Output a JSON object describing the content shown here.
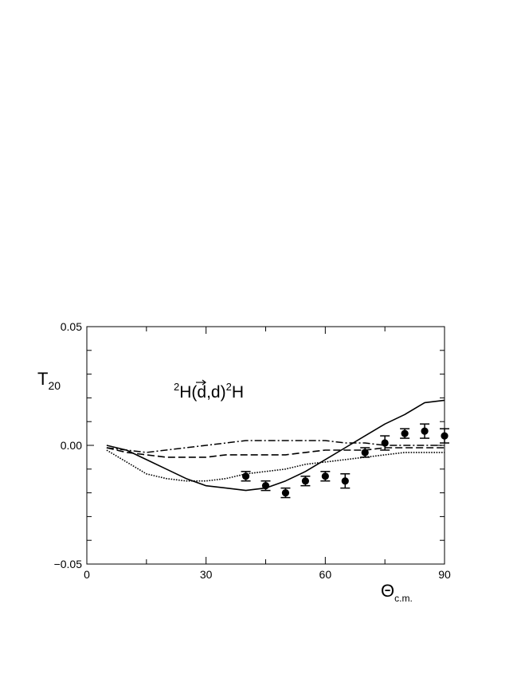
{
  "chart_data": {
    "type": "line",
    "title": "",
    "annotation": {
      "prefix_sup": "2",
      "prefix": "H(",
      "arrow_letter": "d",
      "middle": ",d)",
      "suffix_sup": "2",
      "suffix": "H"
    },
    "ylabel": {
      "main": "T",
      "sub": "20"
    },
    "xlabel": {
      "main": "Θ",
      "sub": "c.m."
    },
    "xlim": [
      0,
      90
    ],
    "ylim": [
      -0.05,
      0.05
    ],
    "x_ticks": [
      {
        "value": 0,
        "label": "0"
      },
      {
        "value": 30,
        "label": "30"
      },
      {
        "value": 60,
        "label": "60"
      },
      {
        "value": 90,
        "label": "90"
      }
    ],
    "y_ticks": [
      {
        "value": -0.05,
        "label": "−0.05"
      },
      {
        "value": 0.0,
        "label": "0.00"
      },
      {
        "value": 0.05,
        "label": "0.05"
      }
    ],
    "x_minor_step": 15,
    "y_minor_step": 0.01,
    "grid": false,
    "series": [
      {
        "style": "solid",
        "x": [
          5,
          10,
          15,
          20,
          25,
          30,
          35,
          40,
          45,
          50,
          55,
          60,
          65,
          70,
          75,
          80,
          85,
          90
        ],
        "y": [
          0.0,
          -0.002,
          -0.006,
          -0.01,
          -0.014,
          -0.017,
          -0.018,
          -0.019,
          -0.018,
          -0.015,
          -0.011,
          -0.006,
          -0.001,
          0.004,
          0.009,
          0.013,
          0.018,
          0.019
        ]
      },
      {
        "style": "dashdot",
        "x": [
          5,
          15,
          30,
          40,
          50,
          60,
          65,
          70,
          75,
          80,
          90
        ],
        "y": [
          -0.001,
          -0.003,
          0.0,
          0.002,
          0.002,
          0.002,
          0.001,
          0.001,
          0.0,
          0.0,
          0.0
        ]
      },
      {
        "style": "dashed",
        "x": [
          5,
          10,
          15,
          20,
          25,
          30,
          35,
          40,
          45,
          50,
          55,
          60,
          65,
          70,
          75,
          80,
          85,
          90
        ],
        "y": [
          -0.001,
          -0.003,
          -0.004,
          -0.005,
          -0.005,
          -0.005,
          -0.004,
          -0.004,
          -0.004,
          -0.004,
          -0.003,
          -0.002,
          -0.002,
          -0.002,
          -0.001,
          -0.001,
          -0.001,
          -0.001
        ]
      },
      {
        "style": "dotted",
        "x": [
          5,
          10,
          15,
          20,
          25,
          30,
          35,
          40,
          45,
          50,
          55,
          60,
          65,
          70,
          75,
          80,
          85,
          90
        ],
        "y": [
          -0.002,
          -0.007,
          -0.012,
          -0.014,
          -0.015,
          -0.015,
          -0.014,
          -0.012,
          -0.011,
          -0.01,
          -0.008,
          -0.007,
          -0.006,
          -0.005,
          -0.004,
          -0.003,
          -0.003,
          -0.003
        ]
      }
    ],
    "data_points": {
      "x": [
        40,
        45,
        50,
        55,
        60,
        65,
        70,
        75,
        80,
        85,
        90
      ],
      "y": [
        -0.013,
        -0.017,
        -0.02,
        -0.015,
        -0.013,
        -0.015,
        -0.003,
        0.001,
        0.005,
        0.006,
        0.004
      ],
      "err": [
        0.002,
        0.002,
        0.002,
        0.002,
        0.002,
        0.003,
        0.002,
        0.003,
        0.002,
        0.003,
        0.003
      ]
    }
  }
}
